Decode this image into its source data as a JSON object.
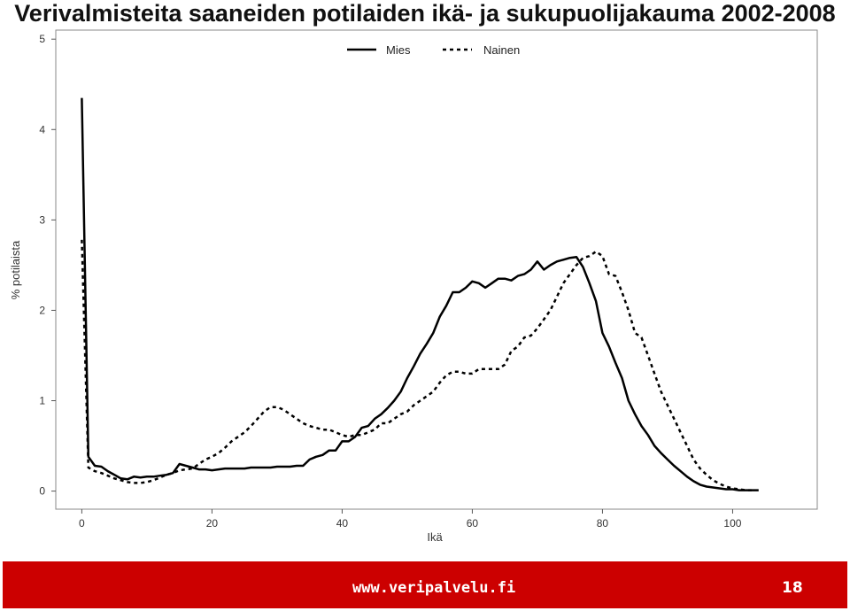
{
  "chart_data": {
    "type": "line",
    "title": "Verivalmisteita saaneiden potilaiden ikä- ja sukupuolijakauma 2002-2008",
    "xlabel": "Ikä",
    "ylabel": "% potilaista",
    "xlim": [
      -4,
      113
    ],
    "ylim": [
      -0.2,
      5.1
    ],
    "xticks": [
      0,
      20,
      40,
      60,
      80,
      100
    ],
    "yticks": [
      0,
      1,
      2,
      3,
      4,
      5
    ],
    "grid": false,
    "legend": "top-center",
    "series": [
      {
        "name": "Mies",
        "style": "solid",
        "x": [
          0,
          1,
          2,
          3,
          4,
          5,
          6,
          7,
          8,
          9,
          10,
          11,
          12,
          13,
          14,
          15,
          16,
          17,
          18,
          19,
          20,
          21,
          22,
          23,
          24,
          25,
          26,
          27,
          28,
          29,
          30,
          31,
          32,
          33,
          34,
          35,
          36,
          37,
          38,
          39,
          40,
          41,
          42,
          43,
          44,
          45,
          46,
          47,
          48,
          49,
          50,
          51,
          52,
          53,
          54,
          55,
          56,
          57,
          58,
          59,
          60,
          61,
          62,
          63,
          64,
          65,
          66,
          67,
          68,
          69,
          70,
          71,
          72,
          73,
          74,
          75,
          76,
          77,
          78,
          79,
          80,
          81,
          82,
          83,
          84,
          85,
          86,
          87,
          88,
          89,
          90,
          91,
          92,
          93,
          94,
          95,
          96,
          97,
          98,
          99,
          100,
          101,
          102,
          103,
          104
        ],
        "y": [
          4.35,
          0.38,
          0.28,
          0.27,
          0.22,
          0.18,
          0.14,
          0.13,
          0.16,
          0.15,
          0.16,
          0.16,
          0.17,
          0.18,
          0.2,
          0.3,
          0.28,
          0.26,
          0.24,
          0.24,
          0.23,
          0.24,
          0.25,
          0.25,
          0.25,
          0.25,
          0.26,
          0.26,
          0.26,
          0.26,
          0.27,
          0.27,
          0.27,
          0.28,
          0.28,
          0.35,
          0.38,
          0.4,
          0.45,
          0.45,
          0.55,
          0.55,
          0.6,
          0.7,
          0.72,
          0.8,
          0.85,
          0.92,
          1.0,
          1.1,
          1.25,
          1.38,
          1.52,
          1.63,
          1.75,
          1.93,
          2.05,
          2.2,
          2.2,
          2.25,
          2.32,
          2.3,
          2.25,
          2.3,
          2.35,
          2.35,
          2.33,
          2.38,
          2.4,
          2.45,
          2.54,
          2.45,
          2.5,
          2.54,
          2.56,
          2.58,
          2.59,
          2.48,
          2.3,
          2.1,
          1.75,
          1.6,
          1.42,
          1.25,
          1.0,
          0.85,
          0.72,
          0.62,
          0.5,
          0.42,
          0.35,
          0.28,
          0.22,
          0.16,
          0.11,
          0.07,
          0.05,
          0.04,
          0.03,
          0.02,
          0.02,
          0.01,
          0.01,
          0.01,
          0.01
        ]
      },
      {
        "name": "Nainen",
        "style": "dotted",
        "x": [
          0,
          1,
          2,
          3,
          4,
          5,
          6,
          7,
          8,
          9,
          10,
          11,
          12,
          13,
          14,
          15,
          16,
          17,
          18,
          19,
          20,
          21,
          22,
          23,
          24,
          25,
          26,
          27,
          28,
          29,
          30,
          31,
          32,
          33,
          34,
          35,
          36,
          37,
          38,
          39,
          40,
          41,
          42,
          43,
          44,
          45,
          46,
          47,
          48,
          49,
          50,
          51,
          52,
          53,
          54,
          55,
          56,
          57,
          58,
          59,
          60,
          61,
          62,
          63,
          64,
          65,
          66,
          67,
          68,
          69,
          70,
          71,
          72,
          73,
          74,
          75,
          76,
          77,
          78,
          79,
          80,
          81,
          82,
          83,
          84,
          85,
          86,
          87,
          88,
          89,
          90,
          91,
          92,
          93,
          94,
          95,
          96,
          97,
          98,
          99,
          100,
          101,
          102,
          103
        ],
        "y": [
          2.78,
          0.26,
          0.22,
          0.2,
          0.17,
          0.14,
          0.12,
          0.1,
          0.09,
          0.09,
          0.1,
          0.12,
          0.15,
          0.18,
          0.2,
          0.23,
          0.24,
          0.25,
          0.3,
          0.35,
          0.38,
          0.42,
          0.48,
          0.55,
          0.6,
          0.65,
          0.72,
          0.8,
          0.88,
          0.93,
          0.93,
          0.9,
          0.85,
          0.8,
          0.75,
          0.72,
          0.7,
          0.68,
          0.68,
          0.65,
          0.62,
          0.6,
          0.62,
          0.62,
          0.65,
          0.68,
          0.75,
          0.75,
          0.8,
          0.85,
          0.88,
          0.95,
          1.0,
          1.05,
          1.1,
          1.2,
          1.28,
          1.32,
          1.32,
          1.3,
          1.3,
          1.35,
          1.35,
          1.35,
          1.35,
          1.4,
          1.55,
          1.6,
          1.7,
          1.72,
          1.8,
          1.9,
          2.0,
          2.15,
          2.3,
          2.4,
          2.5,
          2.58,
          2.6,
          2.65,
          2.6,
          2.4,
          2.38,
          2.2,
          2.0,
          1.75,
          1.7,
          1.5,
          1.3,
          1.1,
          0.95,
          0.8,
          0.65,
          0.5,
          0.35,
          0.25,
          0.18,
          0.12,
          0.08,
          0.05,
          0.03,
          0.02,
          0.01,
          0.01
        ]
      }
    ]
  },
  "footer": {
    "url": "www.veripalvelu.fi",
    "page": "18",
    "color": "#cc0000"
  }
}
